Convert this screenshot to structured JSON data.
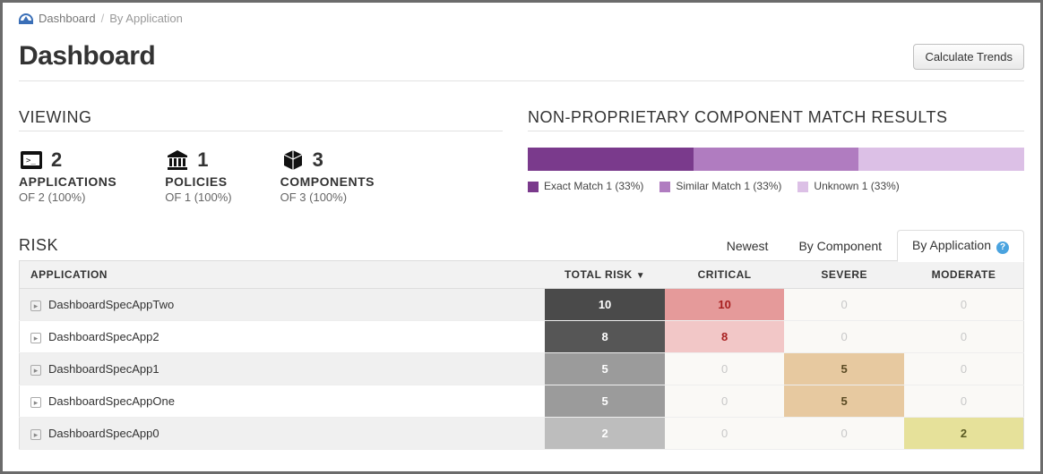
{
  "breadcrumb": {
    "root": "Dashboard",
    "leaf": "By Application"
  },
  "page_title": "Dashboard",
  "calc_button": "Calculate Trends",
  "viewing": {
    "heading": "VIEWING",
    "items": [
      {
        "key": "applications",
        "count": "2",
        "label": "APPLICATIONS",
        "sub": "OF 2 (100%)"
      },
      {
        "key": "policies",
        "count": "1",
        "label": "POLICIES",
        "sub": "OF 1 (100%)"
      },
      {
        "key": "components",
        "count": "3",
        "label": "COMPONENTS",
        "sub": "OF 3 (100%)"
      }
    ]
  },
  "match": {
    "heading": "NON-PROPRIETARY COMPONENT MATCH RESULTS",
    "segments": [
      {
        "label": "Exact Match 1 (33%)",
        "color": "#7a3a8c",
        "pct": 33.3333
      },
      {
        "label": "Similar Match 1 (33%)",
        "color": "#b07cc0",
        "pct": 33.3333
      },
      {
        "label": "Unknown 1 (33%)",
        "color": "#dcc0e6",
        "pct": 33.3334
      }
    ]
  },
  "risk": {
    "heading": "RISK",
    "tabs": [
      {
        "label": "Newest",
        "active": false
      },
      {
        "label": "By Component",
        "active": false
      },
      {
        "label": "By Application",
        "active": true
      }
    ],
    "columns": {
      "app": "APPLICATION",
      "total": "TOTAL RISK",
      "critical": "CRITICAL",
      "severe": "SEVERE",
      "moderate": "MODERATE"
    },
    "sort_column": "total",
    "rows": [
      {
        "app": "DashboardSpecAppTwo",
        "total": "10",
        "critical": "10",
        "severe": "0",
        "moderate": "0",
        "cls": {
          "total": "c-dark",
          "critical": "c-critH",
          "severe": "c-zero",
          "moderate": "c-zero"
        },
        "striped": true
      },
      {
        "app": "DashboardSpecApp2",
        "total": "8",
        "critical": "8",
        "severe": "0",
        "moderate": "0",
        "cls": {
          "total": "c-dark2",
          "critical": "c-critL",
          "severe": "c-zero",
          "moderate": "c-zero"
        },
        "striped": false
      },
      {
        "app": "DashboardSpecApp1",
        "total": "5",
        "critical": "0",
        "severe": "5",
        "moderate": "0",
        "cls": {
          "total": "c-gray",
          "critical": "c-zero",
          "severe": "c-sev",
          "moderate": "c-zero"
        },
        "striped": true
      },
      {
        "app": "DashboardSpecAppOne",
        "total": "5",
        "critical": "0",
        "severe": "5",
        "moderate": "0",
        "cls": {
          "total": "c-gray",
          "critical": "c-zero",
          "severe": "c-sev",
          "moderate": "c-zero"
        },
        "striped": false
      },
      {
        "app": "DashboardSpecApp0",
        "total": "2",
        "critical": "0",
        "severe": "0",
        "moderate": "2",
        "cls": {
          "total": "c-gray2",
          "critical": "c-zero",
          "severe": "c-zero",
          "moderate": "c-mod"
        },
        "striped": true
      }
    ]
  }
}
